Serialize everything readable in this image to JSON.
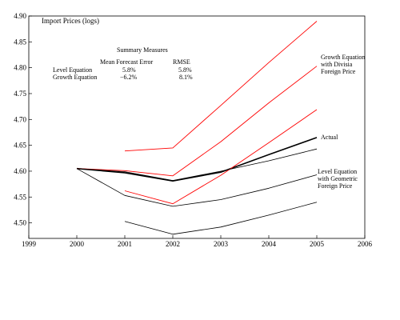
{
  "chart_data": {
    "type": "line",
    "ylabel": "Import Prices (logs)",
    "xlim": [
      1999,
      2006
    ],
    "ylim": [
      4.47,
      4.9
    ],
    "x_ticks": [
      "1999",
      "2000",
      "2001",
      "2002",
      "2003",
      "2004",
      "2005",
      "2006"
    ],
    "y_ticks": [
      "4.50",
      "4.55",
      "4.60",
      "4.65",
      "4.70",
      "4.75",
      "4.80",
      "4.85",
      "4.90"
    ],
    "grid": false,
    "summary": {
      "title": "Summary Measures",
      "col_headers": [
        "Mean Forecast Error",
        "RMSE"
      ],
      "rows": [
        {
          "label": "Level Equation",
          "mfe": "5.8%",
          "rmse": "5.8%"
        },
        {
          "label": "Growth Equation",
          "mfe": "−6.2%",
          "rmse": "8.1%"
        }
      ]
    },
    "series": [
      {
        "name": "Actual",
        "color": "#000000",
        "width": 1.6,
        "x": [
          2000,
          2001,
          2002,
          2003,
          2004,
          2005
        ],
        "y": [
          4.605,
          4.597,
          4.581,
          4.598,
          4.632,
          4.665
        ]
      },
      {
        "color": "#ff0000",
        "width": 0.9,
        "x": [
          2001,
          2002,
          2003,
          2004,
          2005
        ],
        "y": [
          4.639,
          4.645,
          4.727,
          4.81,
          4.89
        ]
      },
      {
        "color": "#ff0000",
        "width": 0.9,
        "x": [
          2000,
          2001,
          2002,
          2003,
          2004,
          2005
        ],
        "y": [
          4.605,
          4.601,
          4.591,
          4.657,
          4.732,
          4.803
        ]
      },
      {
        "color": "#ff0000",
        "width": 0.9,
        "x": [
          2001,
          2002,
          2003,
          2004,
          2005
        ],
        "y": [
          4.562,
          4.537,
          4.592,
          4.655,
          4.719
        ]
      },
      {
        "color": "#000000",
        "width": 0.8,
        "x": [
          2000,
          2001,
          2002,
          2003,
          2004,
          2005
        ],
        "y": [
          4.605,
          4.599,
          4.582,
          4.6,
          4.62,
          4.643
        ]
      },
      {
        "color": "#000000",
        "width": 0.8,
        "x": [
          2000,
          2001,
          2002,
          2003,
          2004,
          2005
        ],
        "y": [
          4.605,
          4.553,
          4.532,
          4.545,
          4.567,
          4.593
        ]
      },
      {
        "color": "#000000",
        "width": 0.8,
        "x": [
          2001,
          2002,
          2003,
          2004,
          2005
        ],
        "y": [
          4.503,
          4.478,
          4.492,
          4.515,
          4.54
        ]
      }
    ],
    "annotations": [
      {
        "lines": [
          "Growth Equation",
          "with Divisia",
          "Foreign Price"
        ]
      },
      {
        "lines": [
          "Actual"
        ]
      },
      {
        "lines": [
          "Level Equation",
          "with Geometric",
          "Foreign Price"
        ]
      }
    ]
  }
}
